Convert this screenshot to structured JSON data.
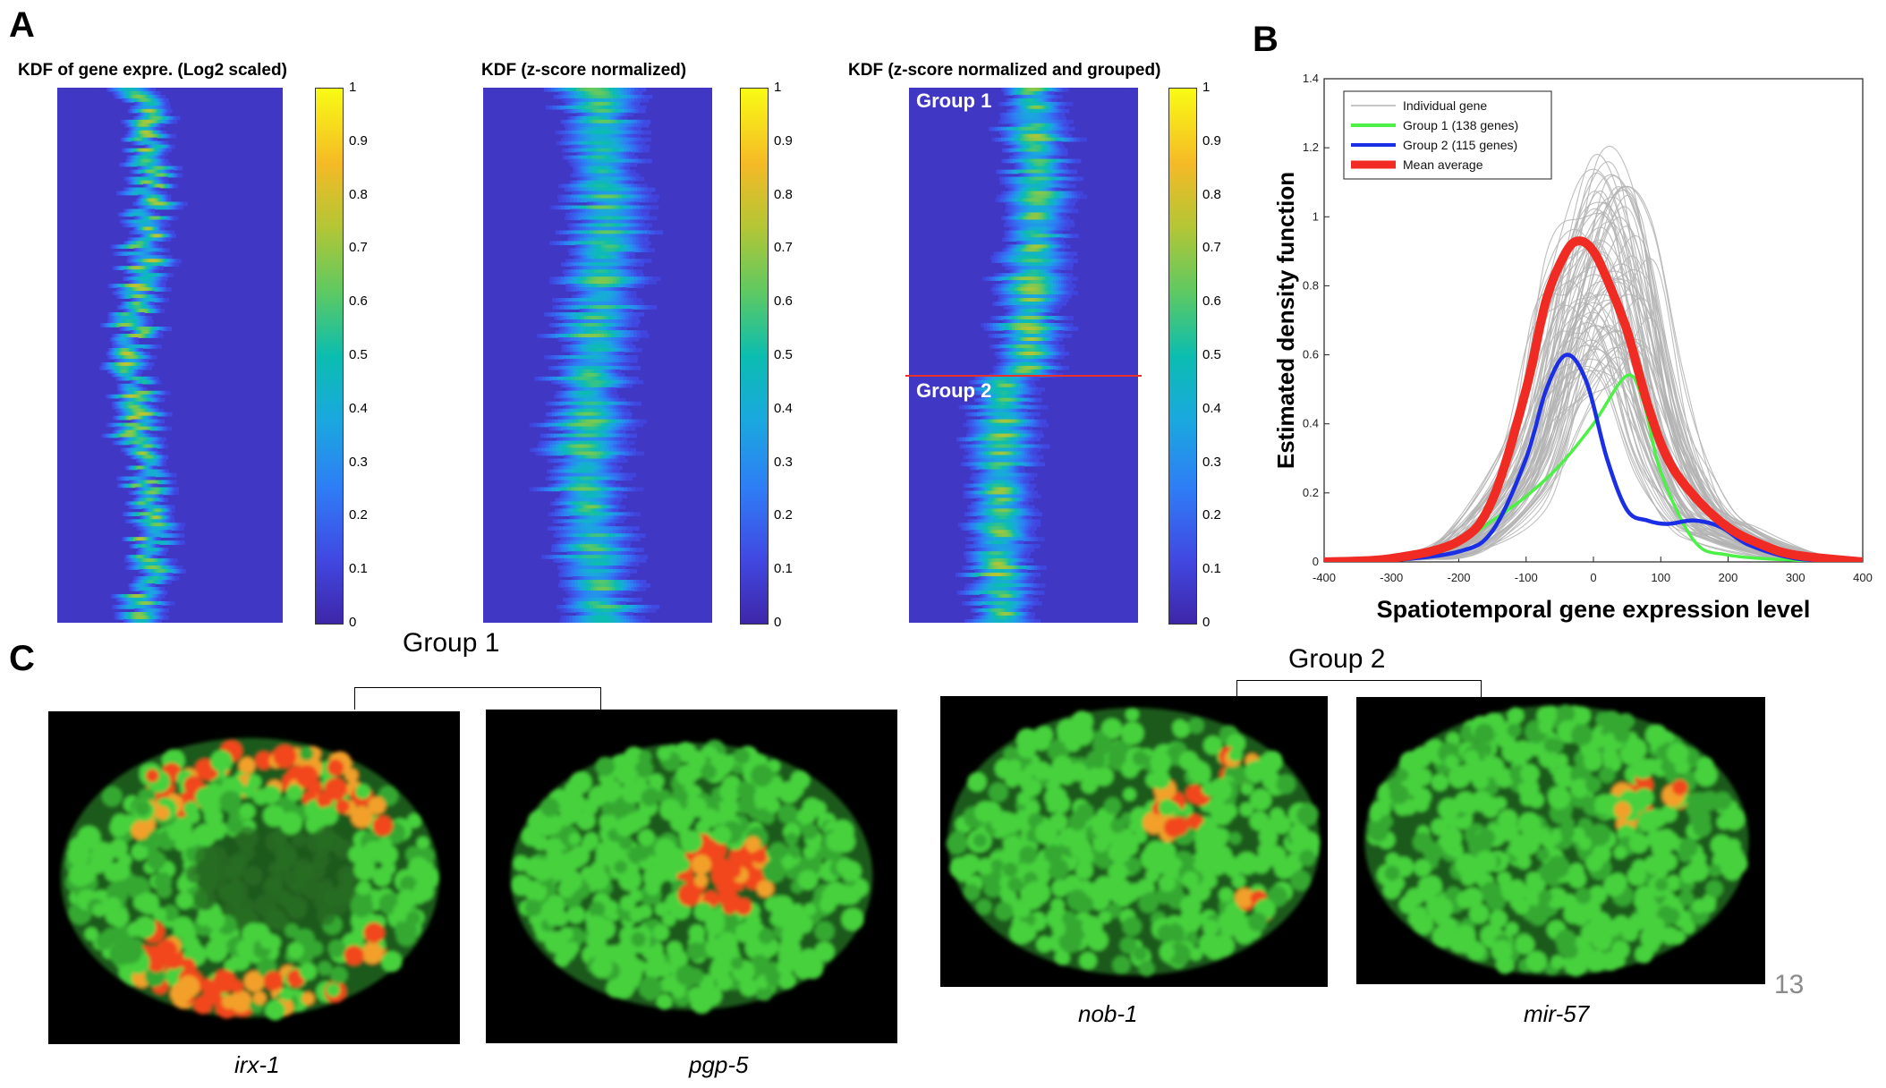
{
  "panels": {
    "a": "A",
    "b": "B",
    "c": "C"
  },
  "heatmaps": [
    {
      "title": "KDF of gene expre. (Log2 scaled)"
    },
    {
      "title": "KDF (z-score normalized)"
    },
    {
      "title": "KDF (z-score normalized and grouped)",
      "group1": "Group 1",
      "group2": "Group 2"
    }
  ],
  "colorbar_ticks": [
    "1",
    "0.9",
    "0.8",
    "0.7",
    "0.6",
    "0.5",
    "0.4",
    "0.3",
    "0.2",
    "0.1",
    "0"
  ],
  "chart_data": {
    "type": "line",
    "title": "",
    "xlabel": "Spatiotemporal gene expression level",
    "ylabel": "Estimated density function",
    "xlim": [
      -400,
      400
    ],
    "ylim": [
      0,
      1.4
    ],
    "xticks": [
      -400,
      -300,
      -200,
      -100,
      0,
      100,
      200,
      300,
      400
    ],
    "yticks": [
      0,
      0.2,
      0.4,
      0.6,
      0.8,
      1,
      1.2,
      1.4
    ],
    "legend_position": "top-left",
    "series": [
      {
        "name": "Individual gene",
        "color": "#b3b3b3",
        "x": [
          -400,
          -300,
          -200,
          -100,
          -50,
          0,
          50,
          100,
          150,
          200,
          300,
          400
        ],
        "y": [
          0,
          0.01,
          0.05,
          0.3,
          0.7,
          0.95,
          0.9,
          0.45,
          0.2,
          0.1,
          0.02,
          0
        ]
      },
      {
        "name": "Group 1 (138 genes)",
        "color": "#4cf046",
        "x": [
          -400,
          -300,
          -200,
          -150,
          -100,
          -50,
          0,
          50,
          75,
          100,
          150,
          200,
          300,
          400
        ],
        "y": [
          0,
          0.01,
          0.06,
          0.12,
          0.19,
          0.28,
          0.4,
          0.54,
          0.46,
          0.26,
          0.06,
          0.02,
          0.005,
          0
        ]
      },
      {
        "name": "Group 2 (115 genes)",
        "color": "#1a2ee6",
        "x": [
          -400,
          -300,
          -200,
          -150,
          -100,
          -70,
          -40,
          -10,
          20,
          50,
          80,
          110,
          150,
          190,
          230,
          300,
          400
        ],
        "y": [
          0,
          0.005,
          0.03,
          0.09,
          0.3,
          0.5,
          0.6,
          0.52,
          0.3,
          0.15,
          0.12,
          0.11,
          0.12,
          0.1,
          0.05,
          0.01,
          0
        ]
      },
      {
        "name": "Mean average",
        "color": "#ef2b23",
        "x": [
          -400,
          -300,
          -200,
          -150,
          -100,
          -70,
          -40,
          -20,
          0,
          20,
          50,
          80,
          110,
          150,
          200,
          250,
          300,
          400
        ],
        "y": [
          0,
          0.01,
          0.06,
          0.18,
          0.5,
          0.76,
          0.9,
          0.93,
          0.9,
          0.82,
          0.67,
          0.46,
          0.3,
          0.19,
          0.1,
          0.05,
          0.02,
          0
        ]
      }
    ]
  },
  "images": {
    "group1": "Group 1",
    "group2": "Group 2",
    "captions": [
      "irx-1",
      "pgp-5",
      "nob-1",
      "mir-57"
    ]
  },
  "page_number": "13",
  "colors": {
    "accent_red": "#e8312a",
    "heat_low": "#3e26a8",
    "heat_high": "#f9fb15",
    "embryo_green": "#3ec63a",
    "embryo_red": "#f0401c"
  }
}
